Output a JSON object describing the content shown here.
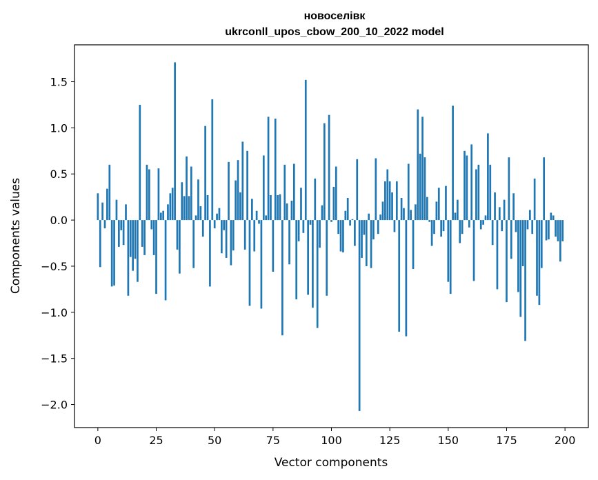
{
  "chart_data": {
    "type": "bar",
    "title": "новоселівк",
    "subtitle": "ukrconll_upos_cbow_200_10_2022 model",
    "xlabel": "Vector components",
    "ylabel": "Components values",
    "xlim": [
      -10,
      210
    ],
    "ylim": [
      -2.25,
      1.9
    ],
    "xticks": [
      0,
      25,
      50,
      75,
      100,
      125,
      150,
      175,
      200
    ],
    "xtick_labels": [
      "0",
      "25",
      "50",
      "75",
      "100",
      "125",
      "150",
      "175",
      "200"
    ],
    "yticks": [
      -2.0,
      -1.5,
      -1.0,
      -0.5,
      0.0,
      0.5,
      1.0,
      1.5
    ],
    "ytick_labels": [
      "−2.0",
      "−1.5",
      "−1.0",
      "−0.5",
      "0.0",
      "0.5",
      "1.0",
      "1.5"
    ],
    "grid": false,
    "legend": "none",
    "bar_color": "#1f77b4",
    "x": [
      0,
      1,
      2,
      3,
      4,
      5,
      6,
      7,
      8,
      9,
      10,
      11,
      12,
      13,
      14,
      15,
      16,
      17,
      18,
      19,
      20,
      21,
      22,
      23,
      24,
      25,
      26,
      27,
      28,
      29,
      30,
      31,
      32,
      33,
      34,
      35,
      36,
      37,
      38,
      39,
      40,
      41,
      42,
      43,
      44,
      45,
      46,
      47,
      48,
      49,
      50,
      51,
      52,
      53,
      54,
      55,
      56,
      57,
      58,
      59,
      60,
      61,
      62,
      63,
      64,
      65,
      66,
      67,
      68,
      69,
      70,
      71,
      72,
      73,
      74,
      75,
      76,
      77,
      78,
      79,
      80,
      81,
      82,
      83,
      84,
      85,
      86,
      87,
      88,
      89,
      90,
      91,
      92,
      93,
      94,
      95,
      96,
      97,
      98,
      99,
      100,
      101,
      102,
      103,
      104,
      105,
      106,
      107,
      108,
      109,
      110,
      111,
      112,
      113,
      114,
      115,
      116,
      117,
      118,
      119,
      120,
      121,
      122,
      123,
      124,
      125,
      126,
      127,
      128,
      129,
      130,
      131,
      132,
      133,
      134,
      135,
      136,
      137,
      138,
      139,
      140,
      141,
      142,
      143,
      144,
      145,
      146,
      147,
      148,
      149,
      150,
      151,
      152,
      153,
      154,
      155,
      156,
      157,
      158,
      159,
      160,
      161,
      162,
      163,
      164,
      165,
      166,
      167,
      168,
      169,
      170,
      171,
      172,
      173,
      174,
      175,
      176,
      177,
      178,
      179,
      180,
      181,
      182,
      183,
      184,
      185,
      186,
      187,
      188,
      189,
      190,
      191,
      192,
      193,
      194,
      195,
      196,
      197,
      198,
      199
    ],
    "values": [
      0.29,
      -0.51,
      0.19,
      -0.09,
      0.34,
      0.6,
      -0.72,
      -0.71,
      0.22,
      -0.29,
      -0.11,
      -0.27,
      0.17,
      -0.82,
      -0.4,
      -0.55,
      -0.42,
      -0.67,
      1.25,
      -0.29,
      -0.38,
      0.6,
      0.55,
      -0.1,
      -0.38,
      -0.8,
      0.56,
      0.08,
      0.1,
      -0.87,
      0.17,
      0.29,
      0.35,
      1.71,
      -0.32,
      -0.58,
      0.41,
      0.26,
      0.69,
      0.26,
      0.58,
      -0.52,
      0.05,
      0.44,
      0.15,
      -0.18,
      1.02,
      0.27,
      -0.72,
      1.31,
      -0.09,
      0.07,
      0.13,
      -0.36,
      -0.11,
      -0.41,
      0.63,
      -0.49,
      -0.33,
      0.43,
      0.65,
      0.3,
      0.85,
      -0.32,
      0.75,
      -0.93,
      0.23,
      -0.34,
      0.1,
      -0.04,
      -0.96,
      0.7,
      0.05,
      1.12,
      0.27,
      -0.56,
      1.1,
      0.27,
      0.28,
      -1.25,
      0.6,
      0.18,
      -0.48,
      0.21,
      0.61,
      -0.86,
      -0.23,
      0.35,
      -0.14,
      1.52,
      -0.81,
      -0.05,
      -0.95,
      0.45,
      -1.17,
      -0.3,
      0.16,
      1.05,
      -0.82,
      1.14,
      -0.02,
      0.36,
      0.58,
      -0.15,
      -0.34,
      -0.35,
      0.1,
      0.24,
      -0.06,
      0.01,
      -0.28,
      0.66,
      -2.07,
      -0.41,
      -0.16,
      -0.5,
      0.07,
      -0.52,
      -0.21,
      0.67,
      -0.15,
      0.06,
      0.2,
      0.42,
      0.55,
      0.42,
      0.3,
      -0.13,
      0.42,
      -1.21,
      0.24,
      0.13,
      -1.26,
      0.61,
      0.11,
      -0.53,
      0.17,
      1.2,
      0.72,
      1.12,
      0.68,
      0.25,
      -0.02,
      -0.28,
      -0.15,
      0.2,
      0.35,
      -0.18,
      -0.12,
      0.37,
      -0.67,
      -0.8,
      1.24,
      0.08,
      0.22,
      -0.25,
      -0.15,
      0.75,
      0.7,
      -0.08,
      0.82,
      -0.66,
      0.55,
      0.6,
      -0.1,
      -0.05,
      0.05,
      0.94,
      0.6,
      -0.27,
      0.3,
      -0.75,
      0.14,
      -0.12,
      0.22,
      -0.89,
      0.68,
      -0.42,
      0.29,
      -0.13,
      -0.78,
      -1.05,
      -0.5,
      -1.31,
      -0.1,
      0.11,
      -0.15,
      0.45,
      -0.82,
      -0.92,
      -0.52,
      0.68,
      -0.22,
      -0.21,
      0.08,
      0.05,
      -0.18,
      -0.23,
      -0.45,
      -0.23
    ]
  }
}
